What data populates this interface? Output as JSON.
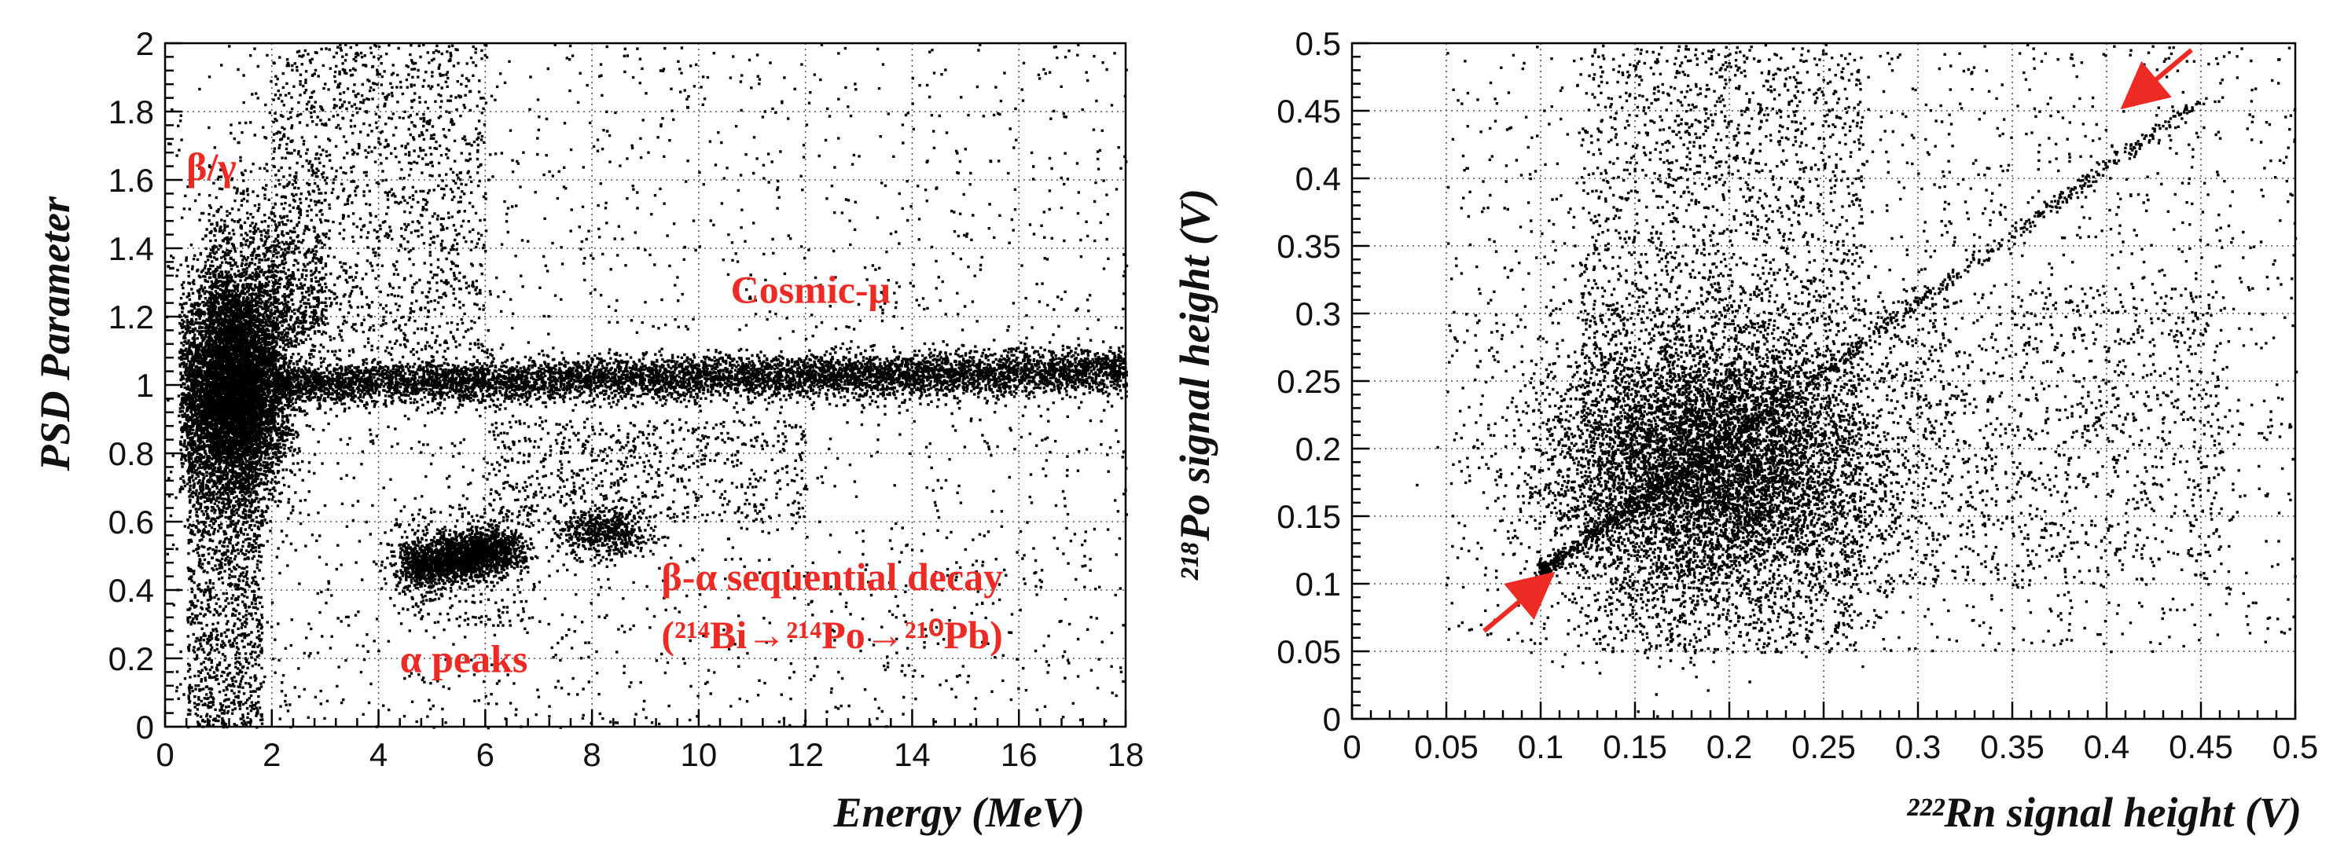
{
  "chart_data": [
    {
      "type": "scatter",
      "title": "",
      "xlabel": "Energy (MeV)",
      "ylabel": "PSD Parameter",
      "xlim": [
        0,
        18
      ],
      "ylim": [
        0,
        2
      ],
      "xticks": [
        0,
        2,
        4,
        6,
        8,
        10,
        12,
        14,
        16,
        18
      ],
      "yticks": [
        0,
        0.2,
        0.4,
        0.6,
        0.8,
        1,
        1.2,
        1.4,
        1.6,
        1.8,
        2
      ],
      "xtick_labels": [
        "0",
        "2",
        "4",
        "6",
        "8",
        "10",
        "12",
        "14",
        "16",
        "18"
      ],
      "ytick_labels": [
        "0",
        "0.2",
        "0.4",
        "0.6",
        "0.8",
        "1",
        "1.2",
        "1.4",
        "1.6",
        "1.8",
        "2"
      ],
      "grid": true,
      "point_color": "#000000",
      "annotation_color": "#ee2a24",
      "annotations": [
        {
          "text": "β/γ",
          "x": 0.4,
          "y": 1.6
        },
        {
          "text": "Cosmic-μ",
          "x": 10.6,
          "y": 1.24
        },
        {
          "text": "α peaks",
          "x": 4.4,
          "y": 0.16
        },
        {
          "text": "β-α sequential decay",
          "x": 9.3,
          "y": 0.4
        },
        {
          "text": "(²¹⁴Bi→²¹⁴Po→²¹⁰Pb)",
          "x": 9.3,
          "y": 0.23
        }
      ],
      "regions": [
        {
          "name": "β/γ",
          "x_center": 1.3,
          "x_spread": 0.6,
          "y_center": 1.0,
          "y_spread": 0.16
        },
        {
          "name": "Cosmic-μ",
          "x_range": [
            2,
            18
          ],
          "y_center": 1.02,
          "y_spread": 0.03
        },
        {
          "name": "α peaks",
          "centers": [
            [
              4.8,
              0.48
            ],
            [
              5.6,
              0.5
            ],
            [
              6.1,
              0.52
            ]
          ],
          "x_spread": 0.3,
          "y_spread": 0.04
        },
        {
          "name": "β-α sequential decay",
          "x_center": 8.3,
          "x_spread": 0.5,
          "y_center": 0.57,
          "y_spread": 0.04
        }
      ]
    },
    {
      "type": "scatter",
      "title": "",
      "xlabel": "²²²Rn signal height (V)",
      "ylabel": "²¹⁸Po signal height (V)",
      "xlim": [
        0,
        0.5
      ],
      "ylim": [
        0,
        0.5
      ],
      "xticks": [
        0,
        0.05,
        0.1,
        0.15,
        0.2,
        0.25,
        0.3,
        0.35,
        0.4,
        0.45,
        0.5
      ],
      "yticks": [
        0,
        0.05,
        0.1,
        0.15,
        0.2,
        0.25,
        0.3,
        0.35,
        0.4,
        0.45,
        0.5
      ],
      "xtick_labels": [
        "0",
        "0.05",
        "0.1",
        "0.15",
        "0.2",
        "0.25",
        "0.3",
        "0.35",
        "0.4",
        "0.45",
        "0.5"
      ],
      "ytick_labels": [
        "0",
        "0.05",
        "0.1",
        "0.15",
        "0.2",
        "0.25",
        "0.3",
        "0.35",
        "0.4",
        "0.45",
        "0.5"
      ],
      "grid": true,
      "point_color": "#000000",
      "arrow_color": "#ee2a24",
      "diagonal_band": {
        "x_range": [
          0.1,
          0.45
        ],
        "slope": 1.0,
        "intercept": 0.01
      },
      "cluster": {
        "x_center": 0.19,
        "x_spread": 0.045,
        "y_center": 0.19,
        "y_spread": 0.05
      },
      "arrows": [
        {
          "from": [
            0.07,
            0.065
          ],
          "to": [
            0.1,
            0.1
          ]
        },
        {
          "from": [
            0.445,
            0.495
          ],
          "to": [
            0.415,
            0.46
          ]
        }
      ]
    }
  ]
}
